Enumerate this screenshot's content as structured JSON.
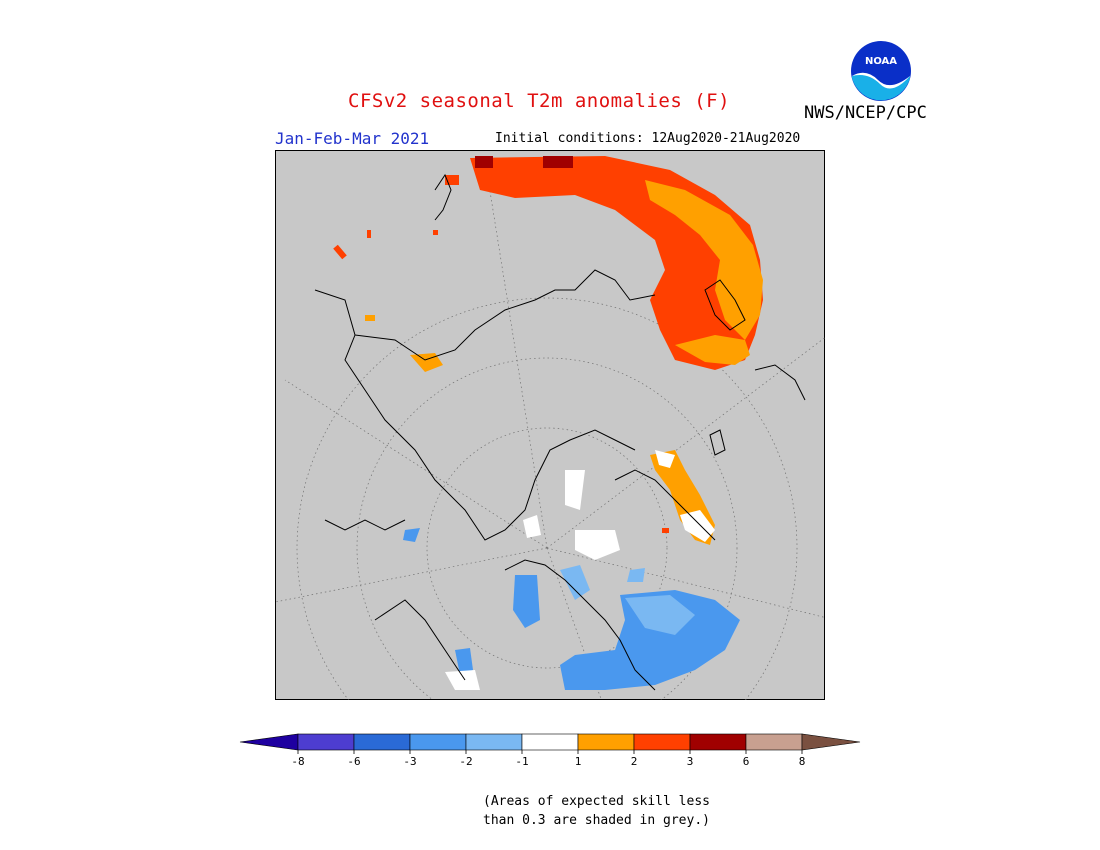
{
  "header": {
    "title": "CFSv2 seasonal T2m anomalies (F)",
    "period": "Jan-Feb-Mar 2021",
    "initial_conditions": "Initial conditions: 12Aug2020-21Aug2020",
    "agency": "NWS/NCEP/CPC",
    "logo_text": "NOAA"
  },
  "colors": {
    "title": "#e01010",
    "period": "#2233cc",
    "land_masked": "#c8c8c8"
  },
  "legend": {
    "bins": [
      {
        "color": "#1e00a0"
      },
      {
        "color": "#4d3dd0"
      },
      {
        "color": "#2a6ad6"
      },
      {
        "color": "#4a98ee"
      },
      {
        "color": "#7ab8f2"
      },
      {
        "color": "#ffffff"
      },
      {
        "color": "#ffa000"
      },
      {
        "color": "#ff4000"
      },
      {
        "color": "#a00000"
      },
      {
        "color": "#c8a090"
      },
      {
        "color": "#7a5040"
      }
    ],
    "ticks": [
      "-8",
      "-6",
      "-3",
      "-2",
      "-1",
      "1",
      "2",
      "3",
      "6",
      "8"
    ]
  },
  "note": {
    "line1": "(Areas of expected skill less",
    "line2": "than 0.3 are shaded in grey.)"
  }
}
